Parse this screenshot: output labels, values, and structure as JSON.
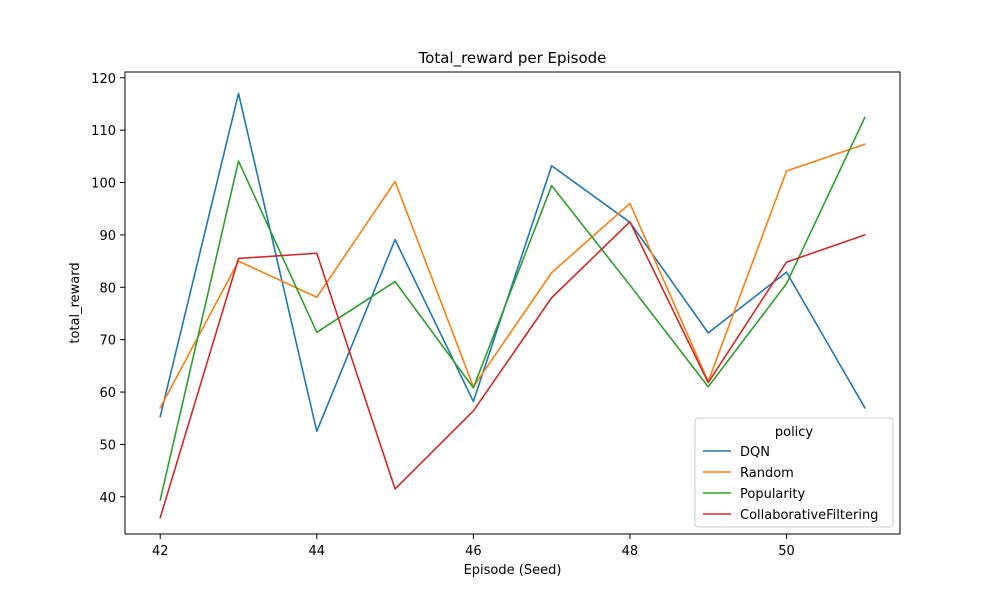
{
  "chart_data": {
    "type": "line",
    "title": "Total_reward per Episode",
    "xlabel": "Episode (Seed)",
    "ylabel": "total_reward",
    "x": [
      42,
      43,
      44,
      45,
      46,
      47,
      48,
      49,
      50,
      51
    ],
    "xticks": [
      42,
      44,
      46,
      48,
      50
    ],
    "yticks": [
      40,
      50,
      60,
      70,
      80,
      90,
      100,
      110,
      120
    ],
    "xlim": [
      41.55,
      51.45
    ],
    "ylim": [
      32.9,
      121.1
    ],
    "grid": false,
    "legend": {
      "title": "policy",
      "placement": "lower-right"
    },
    "series": [
      {
        "name": "DQN",
        "color": "#1f77b4",
        "values": [
          55.3,
          117.0,
          52.5,
          89.1,
          58.2,
          103.2,
          92.4,
          71.3,
          82.9,
          57.0
        ]
      },
      {
        "name": "Random",
        "color": "#ff7f0e",
        "values": [
          57.0,
          85.0,
          78.1,
          100.2,
          61.0,
          82.8,
          96.0,
          62.0,
          102.2,
          107.3
        ]
      },
      {
        "name": "Popularity",
        "color": "#2ca02c",
        "values": [
          39.4,
          104.1,
          71.4,
          81.1,
          60.8,
          99.4,
          80.4,
          61.0,
          80.7,
          112.4
        ]
      },
      {
        "name": "CollaborativeFiltering",
        "color": "#d62728",
        "values": [
          36.0,
          85.5,
          86.5,
          41.5,
          56.4,
          78.0,
          92.5,
          61.8,
          84.8,
          90.0
        ]
      }
    ]
  }
}
